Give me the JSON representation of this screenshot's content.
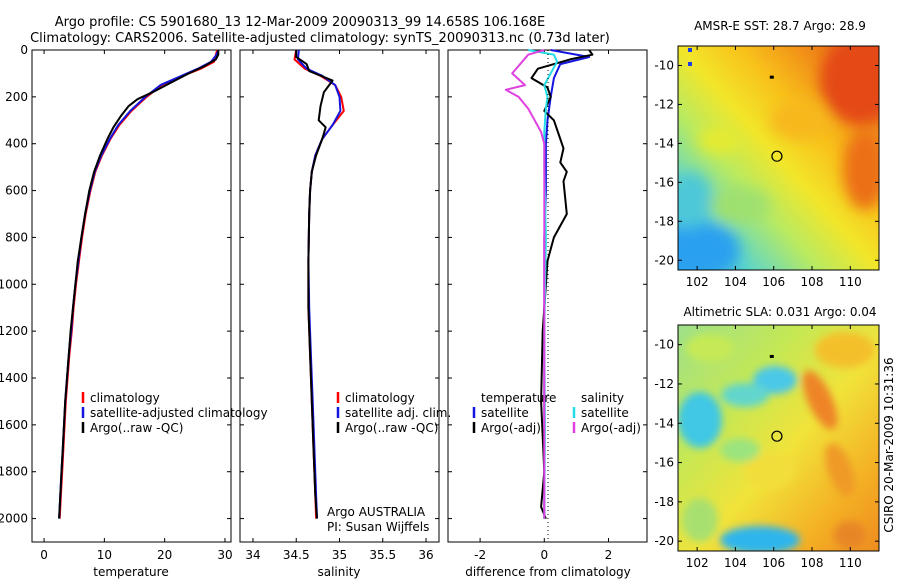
{
  "title_line1": "Argo profile: CS 5901680_13 12-Mar-2009 20090313_99 14.658S 106.168E",
  "title_line2": "Climatology: CARS2006. Satellite-adjusted climatology: synTS_20090313.nc (0.73d later)",
  "side_label": "CSIRO 20-Mar-2009 10:31:36",
  "colors": {
    "red": "#ff0000",
    "blue": "#1515e0",
    "black": "#000000",
    "cyan": "#22dde8",
    "magenta": "#e040e0"
  },
  "chart_data": [
    {
      "type": "line",
      "name": "temperature-panel",
      "xlabel": "temperature",
      "xlim": [
        -2,
        31
      ],
      "ylim": [
        2100,
        0
      ],
      "xticks": [
        0,
        10,
        20,
        30
      ],
      "yticks": [
        0,
        200,
        400,
        600,
        800,
        1000,
        1200,
        1400,
        1600,
        1800,
        2000
      ],
      "legend": [
        "climatology",
        "satellite-adjusted climatology",
        "Argo(..raw -QC)"
      ],
      "series": [
        {
          "name": "climatology",
          "color": "red",
          "points": [
            [
              28.7,
              0
            ],
            [
              28.5,
              20
            ],
            [
              28.2,
              50
            ],
            [
              26,
              80
            ],
            [
              23,
              110
            ],
            [
              19.5,
              150
            ],
            [
              17,
              200
            ],
            [
              14.5,
              260
            ],
            [
              12.5,
              320
            ],
            [
              11,
              380
            ],
            [
              9.6,
              450
            ],
            [
              8.5,
              520
            ],
            [
              7.7,
              600
            ],
            [
              6.9,
              700
            ],
            [
              6.3,
              800
            ],
            [
              5.8,
              900
            ],
            [
              5.3,
              1000
            ],
            [
              4.9,
              1100
            ],
            [
              4.6,
              1200
            ],
            [
              4.2,
              1300
            ],
            [
              3.9,
              1400
            ],
            [
              3.6,
              1500
            ],
            [
              3.4,
              1600
            ],
            [
              3.2,
              1700
            ],
            [
              3.0,
              1800
            ],
            [
              2.8,
              1900
            ],
            [
              2.6,
              2000
            ]
          ]
        },
        {
          "name": "satellite-adjusted climatology",
          "color": "blue",
          "points": [
            [
              28.9,
              0
            ],
            [
              28.6,
              20
            ],
            [
              27.7,
              50
            ],
            [
              25.5,
              80
            ],
            [
              22.8,
              110
            ],
            [
              19.3,
              150
            ],
            [
              16.8,
              200
            ],
            [
              14.3,
              260
            ],
            [
              12.3,
              320
            ],
            [
              10.9,
              380
            ],
            [
              9.5,
              450
            ],
            [
              8.4,
              520
            ],
            [
              7.6,
              600
            ],
            [
              6.8,
              700
            ],
            [
              6.2,
              800
            ],
            [
              5.7,
              900
            ],
            [
              5.2,
              1000
            ],
            [
              4.8,
              1100
            ],
            [
              4.5,
              1200
            ],
            [
              4.1,
              1300
            ],
            [
              3.8,
              1400
            ],
            [
              3.5,
              1500
            ],
            [
              3.3,
              1600
            ],
            [
              3.1,
              1700
            ],
            [
              2.9,
              1800
            ],
            [
              2.7,
              1900
            ],
            [
              2.5,
              2000
            ]
          ]
        },
        {
          "name": "Argo(..raw -QC)",
          "color": "black",
          "points": [
            [
              28.9,
              0
            ],
            [
              28.9,
              20
            ],
            [
              28.5,
              40
            ],
            [
              26.5,
              70
            ],
            [
              24,
              100
            ],
            [
              21,
              140
            ],
            [
              18,
              180
            ],
            [
              15.5,
              210
            ],
            [
              14,
              240
            ],
            [
              12.8,
              280
            ],
            [
              11.5,
              330
            ],
            [
              10.5,
              380
            ],
            [
              9.3,
              450
            ],
            [
              8.3,
              520
            ],
            [
              7.5,
              600
            ],
            [
              6.8,
              700
            ],
            [
              6.2,
              800
            ],
            [
              5.6,
              900
            ],
            [
              5.2,
              1000
            ],
            [
              4.8,
              1100
            ],
            [
              4.4,
              1200
            ],
            [
              4.1,
              1300
            ],
            [
              3.8,
              1400
            ],
            [
              3.5,
              1500
            ],
            [
              3.3,
              1600
            ],
            [
              3.1,
              1700
            ],
            [
              2.9,
              1800
            ],
            [
              2.7,
              1900
            ],
            [
              2.5,
              2000
            ]
          ]
        }
      ]
    },
    {
      "type": "line",
      "name": "salinity-panel",
      "xlabel": "salinity",
      "xlim": [
        33.85,
        36.15
      ],
      "ylim": [
        2100,
        0
      ],
      "xticks": [
        34,
        34.5,
        35,
        35.5,
        36
      ],
      "legend": [
        "climatology",
        "satellite adj. clim.",
        "Argo(..raw -QC)"
      ],
      "annotation": [
        "Argo AUSTRALIA",
        "PI: Susan Wijffels"
      ],
      "series": [
        {
          "name": "climatology",
          "color": "red",
          "points": [
            [
              34.5,
              0
            ],
            [
              34.48,
              40
            ],
            [
              34.6,
              80
            ],
            [
              34.78,
              110
            ],
            [
              34.95,
              150
            ],
            [
              35.02,
              200
            ],
            [
              35.05,
              260
            ],
            [
              34.92,
              320
            ],
            [
              34.8,
              380
            ],
            [
              34.72,
              450
            ],
            [
              34.68,
              520
            ],
            [
              34.66,
              600
            ],
            [
              34.65,
              700
            ],
            [
              34.64,
              900
            ],
            [
              34.64,
              1100
            ],
            [
              34.66,
              1300
            ],
            [
              34.68,
              1500
            ],
            [
              34.7,
              1700
            ],
            [
              34.72,
              1900
            ],
            [
              34.73,
              2000
            ]
          ]
        },
        {
          "name": "satellite adj. clim.",
          "color": "blue",
          "points": [
            [
              34.53,
              0
            ],
            [
              34.52,
              40
            ],
            [
              34.62,
              80
            ],
            [
              34.8,
              110
            ],
            [
              34.95,
              150
            ],
            [
              35.0,
              200
            ],
            [
              35.01,
              260
            ],
            [
              34.92,
              320
            ],
            [
              34.8,
              380
            ],
            [
              34.72,
              450
            ],
            [
              34.68,
              520
            ],
            [
              34.66,
              600
            ],
            [
              34.65,
              700
            ],
            [
              34.64,
              900
            ],
            [
              34.65,
              1100
            ],
            [
              34.67,
              1300
            ],
            [
              34.69,
              1500
            ],
            [
              34.71,
              1700
            ],
            [
              34.73,
              1900
            ],
            [
              34.74,
              2000
            ]
          ]
        },
        {
          "name": "Argo(..raw -QC)",
          "color": "black",
          "points": [
            [
              34.5,
              0
            ],
            [
              34.5,
              30
            ],
            [
              34.62,
              60
            ],
            [
              34.65,
              90
            ],
            [
              34.92,
              130
            ],
            [
              34.82,
              180
            ],
            [
              34.78,
              240
            ],
            [
              34.76,
              300
            ],
            [
              34.84,
              330
            ],
            [
              34.8,
              380
            ],
            [
              34.73,
              450
            ],
            [
              34.68,
              520
            ],
            [
              34.66,
              600
            ],
            [
              34.65,
              700
            ],
            [
              34.64,
              900
            ],
            [
              34.64,
              1100
            ],
            [
              34.66,
              1300
            ],
            [
              34.68,
              1500
            ],
            [
              34.7,
              1700
            ],
            [
              34.72,
              1900
            ],
            [
              34.74,
              2000
            ]
          ]
        }
      ]
    },
    {
      "type": "line",
      "name": "difference-panel",
      "xlabel": "difference from climatology",
      "xlim": [
        -3,
        3.2
      ],
      "ylim": [
        2100,
        0
      ],
      "xticks": [
        -2,
        0,
        2
      ],
      "legend_left": {
        "header": "temperature",
        "items": [
          "satellite",
          "Argo(-adj)"
        ]
      },
      "legend_right": {
        "header": "salinity",
        "items": [
          "satellite",
          "Argo(-adj)"
        ]
      },
      "series": [
        {
          "name": "temperature satellite",
          "color": "blue",
          "points": [
            [
              0.2,
              0
            ],
            [
              0.8,
              15
            ],
            [
              1.4,
              30
            ],
            [
              0.5,
              60
            ],
            [
              0.3,
              120
            ],
            [
              0.2,
              200
            ],
            [
              0.1,
              300
            ],
            [
              0.05,
              400
            ],
            [
              0.05,
              600
            ],
            [
              0.0,
              800
            ],
            [
              0.0,
              1200
            ],
            [
              0.0,
              1600
            ],
            [
              0.0,
              2000
            ]
          ]
        },
        {
          "name": "temperature Argo(-adj)",
          "color": "black",
          "points": [
            [
              1.4,
              0
            ],
            [
              1.5,
              20
            ],
            [
              0.8,
              40
            ],
            [
              -0.2,
              80
            ],
            [
              -0.4,
              120
            ],
            [
              0.1,
              160
            ],
            [
              0.2,
              200
            ],
            [
              0.0,
              260
            ],
            [
              0.3,
              300
            ],
            [
              0.5,
              380
            ],
            [
              0.6,
              420
            ],
            [
              0.5,
              480
            ],
            [
              0.7,
              520
            ],
            [
              0.6,
              560
            ],
            [
              0.7,
              700
            ],
            [
              0.3,
              800
            ],
            [
              0.1,
              900
            ],
            [
              0.05,
              1000
            ],
            [
              -0.05,
              1200
            ],
            [
              -0.1,
              1500
            ],
            [
              0.0,
              1800
            ],
            [
              -0.1,
              1950
            ],
            [
              0.05,
              2000
            ]
          ]
        },
        {
          "name": "salinity satellite",
          "color": "cyan",
          "points": [
            [
              -0.5,
              0
            ],
            [
              0.3,
              20
            ],
            [
              0.4,
              50
            ],
            [
              0.2,
              100
            ],
            [
              0.0,
              150
            ],
            [
              0.1,
              200
            ],
            [
              0.05,
              250
            ],
            [
              0.0,
              350
            ],
            [
              0.0,
              500
            ],
            [
              0.05,
              800
            ],
            [
              0.0,
              1200
            ],
            [
              0.02,
              1600
            ],
            [
              0.0,
              2000
            ]
          ]
        },
        {
          "name": "salinity Argo(-adj)",
          "color": "magenta",
          "points": [
            [
              0.0,
              0
            ],
            [
              -0.5,
              20
            ],
            [
              -1.0,
              100
            ],
            [
              -0.6,
              150
            ],
            [
              -1.2,
              170
            ],
            [
              -0.8,
              200
            ],
            [
              -0.5,
              250
            ],
            [
              -0.3,
              300
            ],
            [
              -0.1,
              350
            ],
            [
              0.0,
              400
            ],
            [
              0.0,
              600
            ],
            [
              0.0,
              1000
            ],
            [
              0.0,
              1400
            ],
            [
              0.0,
              2000
            ]
          ]
        }
      ]
    },
    {
      "type": "heatmap",
      "name": "amsr-sst-map",
      "title": "AMSR-E SST: 28.7  Argo: 28.9",
      "xlim": [
        101,
        111.5
      ],
      "ylim": [
        -20.5,
        -9
      ],
      "xticks": [
        102,
        104,
        106,
        108,
        110
      ],
      "yticks": [
        -10,
        -12,
        -14,
        -16,
        -18,
        -20
      ],
      "marker": {
        "lon": 106.168,
        "lat": -14.658
      },
      "small_mark": {
        "lon": 105.9,
        "lat": -10.6
      }
    },
    {
      "type": "heatmap",
      "name": "altimetric-sla-map",
      "title": "Altimetric SLA: 0.031  Argo: 0.04",
      "xlim": [
        101,
        111.5
      ],
      "ylim": [
        -20.5,
        -9
      ],
      "xticks": [
        102,
        104,
        106,
        108,
        110
      ],
      "yticks": [
        -10,
        -12,
        -14,
        -16,
        -18,
        -20
      ],
      "marker": {
        "lon": 106.168,
        "lat": -14.658
      },
      "small_mark": {
        "lon": 105.9,
        "lat": -10.6
      }
    }
  ]
}
